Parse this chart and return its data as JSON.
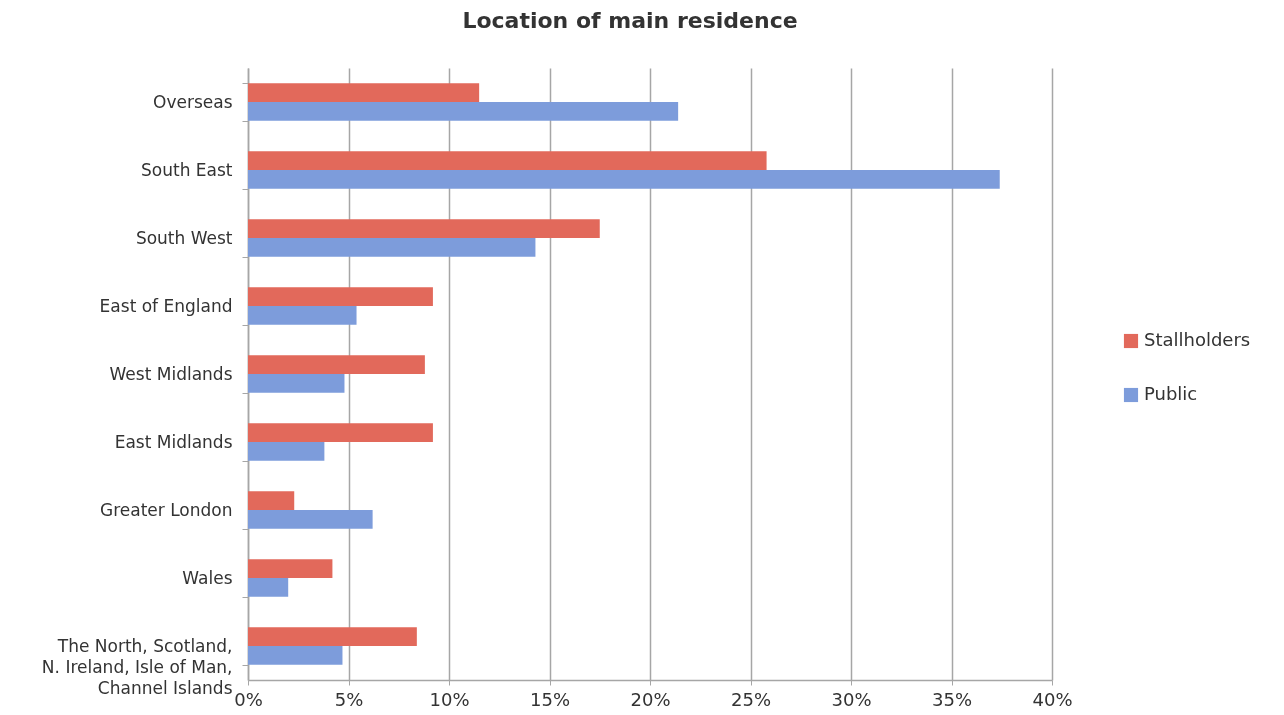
{
  "chart_data": {
    "type": "bar",
    "orientation": "horizontal",
    "title": "Location of main residence",
    "categories": [
      "Overseas",
      "South East",
      "South West",
      "East of England",
      "West Midlands",
      "East Midlands",
      "Greater London",
      "Wales",
      "The North, Scotland, N. Ireland, Isle of Man, Channel Islands"
    ],
    "series": [
      {
        "name": "Stallholders",
        "color": "#e2695b",
        "values": [
          11.5,
          25.8,
          17.5,
          9.2,
          8.8,
          9.2,
          2.3,
          4.2,
          8.4
        ]
      },
      {
        "name": "Public",
        "color": "#7d9cdb",
        "values": [
          21.4,
          37.4,
          14.3,
          5.4,
          4.8,
          3.8,
          6.2,
          2.0,
          4.7
        ]
      }
    ],
    "xlim": [
      0,
      40
    ],
    "xticks": [
      {
        "value": 0,
        "label": "0%"
      },
      {
        "value": 5,
        "label": "5%"
      },
      {
        "value": 10,
        "label": "10%"
      },
      {
        "value": 15,
        "label": "15%"
      },
      {
        "value": 20,
        "label": "20%"
      },
      {
        "value": 25,
        "label": "25%"
      },
      {
        "value": 30,
        "label": "30%"
      },
      {
        "value": 35,
        "label": "35%"
      },
      {
        "value": 40,
        "label": "40%"
      }
    ],
    "grid": "x",
    "legend": "right"
  }
}
